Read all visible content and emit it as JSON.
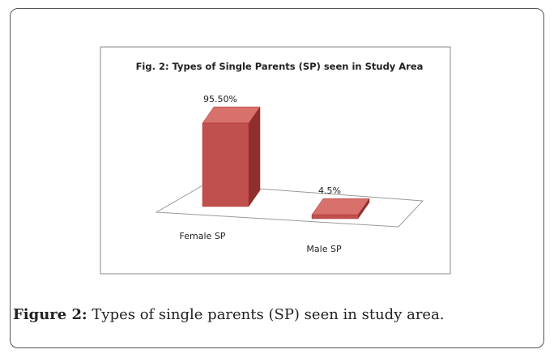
{
  "chart_data": {
    "type": "bar3d",
    "title": "Fig. 2: Types of Single Parents (SP) seen in Study Area",
    "categories": [
      "Female SP",
      "Male SP"
    ],
    "values": [
      95.5,
      4.5
    ],
    "value_labels": [
      "95.50%",
      "4.5%"
    ],
    "color": "#c0504d"
  },
  "caption": {
    "label": "Figure 2:",
    "text": "Types of single parents (SP) seen in study area."
  }
}
